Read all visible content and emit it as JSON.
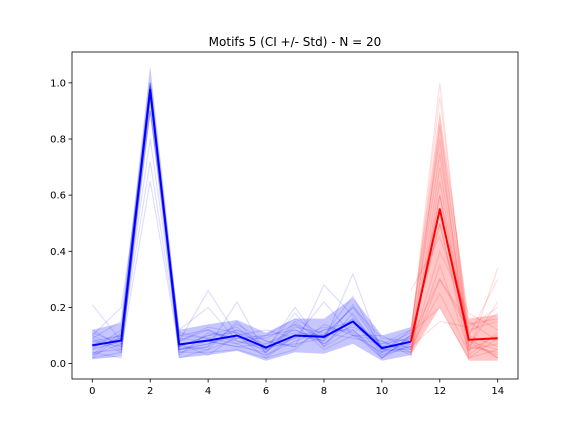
{
  "chart_data": {
    "type": "line",
    "title": "Motifs 5 (CI +/- Std) - N = 20",
    "xlabel": "",
    "ylabel": "",
    "xlim": [
      -0.7,
      14.7
    ],
    "ylim": [
      -0.055,
      1.11
    ],
    "grid": false,
    "x_ticks": [
      0,
      2,
      4,
      6,
      8,
      10,
      12,
      14
    ],
    "y_ticks": [
      0.0,
      0.2,
      0.4,
      0.6,
      0.8,
      1.0
    ],
    "x_tick_labels": [
      "0",
      "2",
      "4",
      "6",
      "8",
      "10",
      "12",
      "14"
    ],
    "y_tick_labels": [
      "0.0",
      "0.2",
      "0.4",
      "0.6",
      "0.8",
      "1.0"
    ],
    "colors": {
      "blue": "#0000ff",
      "blue_band": "#0000ff",
      "red": "#ff0000",
      "red_band": "#ff0000"
    },
    "series": [
      {
        "color": "blue",
        "x": [
          0,
          1,
          2,
          3,
          4,
          5,
          6,
          7,
          8,
          9,
          10,
          11
        ],
        "mean": [
          0.065,
          0.082,
          0.975,
          0.068,
          0.082,
          0.1,
          0.057,
          0.1,
          0.095,
          0.15,
          0.055,
          0.078
        ],
        "lower": [
          0.015,
          0.025,
          0.89,
          0.02,
          0.03,
          0.045,
          0.01,
          0.04,
          0.035,
          0.07,
          0.01,
          0.03
        ],
        "upper": [
          0.12,
          0.145,
          1.06,
          0.12,
          0.14,
          0.155,
          0.11,
          0.16,
          0.16,
          0.235,
          0.1,
          0.13
        ]
      },
      {
        "color": "red",
        "x": [
          11,
          12,
          13,
          14
        ],
        "mean": [
          0.078,
          0.55,
          0.085,
          0.09
        ],
        "lower": [
          0.03,
          0.2,
          0.01,
          0.01
        ],
        "upper": [
          0.13,
          0.9,
          0.16,
          0.175
        ]
      }
    ],
    "individual_traces": {
      "count": 20,
      "blue_x": [
        0,
        1,
        2,
        3,
        4,
        5,
        6,
        7,
        8,
        9,
        10,
        11
      ],
      "red_x": [
        11,
        12,
        13,
        14
      ],
      "blue": [
        [
          0.21,
          0.08,
          0.98,
          0.05,
          0.07,
          0.1,
          0.02,
          0.1,
          0.1,
          0.2,
          0.05,
          0.1
        ],
        [
          0.05,
          0.12,
          1.0,
          0.1,
          0.09,
          0.12,
          0.08,
          0.06,
          0.12,
          0.12,
          0.02,
          0.07
        ],
        [
          0.1,
          0.05,
          0.95,
          0.02,
          0.05,
          0.15,
          0.04,
          0.14,
          0.05,
          0.1,
          0.08,
          0.03
        ],
        [
          0.02,
          0.04,
          0.99,
          0.08,
          0.12,
          0.07,
          0.1,
          0.12,
          0.08,
          0.32,
          0.04,
          0.12
        ],
        [
          0.08,
          0.1,
          1.0,
          0.06,
          0.1,
          0.13,
          0.05,
          0.18,
          0.06,
          0.18,
          0.03,
          0.08
        ],
        [
          0.04,
          0.02,
          0.98,
          0.04,
          0.04,
          0.05,
          0.02,
          0.05,
          0.14,
          0.1,
          0.1,
          0.05
        ],
        [
          0.06,
          0.09,
          0.9,
          0.12,
          0.2,
          0.08,
          0.06,
          0.1,
          0.1,
          0.24,
          0.05,
          0.04
        ],
        [
          0.03,
          0.07,
          0.97,
          0.05,
          0.06,
          0.22,
          0.03,
          0.08,
          0.12,
          0.15,
          0.07,
          0.09
        ],
        [
          0.09,
          0.15,
          1.0,
          0.03,
          0.11,
          0.09,
          0.09,
          0.14,
          0.09,
          0.16,
          0.02,
          0.1
        ],
        [
          0.12,
          0.06,
          0.99,
          0.07,
          0.03,
          0.1,
          0.12,
          0.09,
          0.22,
          0.1,
          0.04,
          0.06
        ],
        [
          0.07,
          0.1,
          0.96,
          0.09,
          0.08,
          0.06,
          0.04,
          0.15,
          0.07,
          0.14,
          0.06,
          0.11
        ],
        [
          0.05,
          0.08,
          0.72,
          0.06,
          0.1,
          0.11,
          0.07,
          0.11,
          0.1,
          0.2,
          0.09,
          0.08
        ],
        [
          0.1,
          0.2,
          0.9,
          0.1,
          0.12,
          0.08,
          0.05,
          0.2,
          0.06,
          0.12,
          0.03,
          0.06
        ],
        [
          0.04,
          0.05,
          0.65,
          0.05,
          0.07,
          0.12,
          0.06,
          0.07,
          0.09,
          0.15,
          0.05,
          0.05
        ],
        [
          0.06,
          0.09,
          0.8,
          0.08,
          0.26,
          0.1,
          0.04,
          0.13,
          0.11,
          0.09,
          0.07,
          0.12
        ],
        [
          0.08,
          0.06,
          0.98,
          0.04,
          0.06,
          0.14,
          0.08,
          0.06,
          0.28,
          0.17,
          0.04,
          0.09
        ],
        [
          0.03,
          0.11,
          0.99,
          0.11,
          0.09,
          0.07,
          0.03,
          0.1,
          0.08,
          0.21,
          0.06,
          0.07
        ],
        [
          0.11,
          0.07,
          1.0,
          0.06,
          0.05,
          0.09,
          0.1,
          0.16,
          0.1,
          0.13,
          0.08,
          0.04
        ],
        [
          0.02,
          0.1,
          0.97,
          0.08,
          0.13,
          0.11,
          0.05,
          0.09,
          0.13,
          0.11,
          0.02,
          0.1
        ],
        [
          0.09,
          0.04,
          0.95,
          0.05,
          0.08,
          0.06,
          0.07,
          0.12,
          0.07,
          0.16,
          0.06,
          0.06
        ]
      ],
      "red": [
        [
          0.1,
          1.0,
          0.05,
          0.1
        ],
        [
          0.05,
          0.6,
          0.1,
          0.3
        ],
        [
          0.12,
          0.8,
          0.02,
          0.05
        ],
        [
          0.04,
          0.3,
          0.12,
          0.15
        ],
        [
          0.08,
          0.5,
          0.06,
          0.22
        ],
        [
          0.03,
          0.7,
          0.08,
          0.02
        ],
        [
          0.26,
          0.45,
          0.15,
          0.08
        ],
        [
          0.06,
          0.25,
          0.04,
          0.34
        ],
        [
          0.09,
          0.95,
          0.1,
          0.06
        ],
        [
          0.05,
          0.4,
          0.18,
          0.12
        ],
        [
          0.02,
          0.65,
          0.07,
          0.03
        ],
        [
          0.11,
          0.2,
          0.02,
          0.09
        ],
        [
          0.07,
          0.55,
          0.11,
          0.18
        ],
        [
          0.04,
          0.35,
          0.05,
          0.07
        ],
        [
          0.08,
          0.75,
          0.09,
          0.02
        ],
        [
          0.06,
          0.15,
          0.13,
          0.2
        ],
        [
          0.1,
          0.5,
          0.03,
          0.11
        ],
        [
          0.03,
          0.85,
          0.08,
          0.05
        ],
        [
          0.09,
          0.3,
          0.14,
          0.16
        ],
        [
          0.05,
          0.6,
          0.06,
          0.04
        ]
      ]
    }
  }
}
